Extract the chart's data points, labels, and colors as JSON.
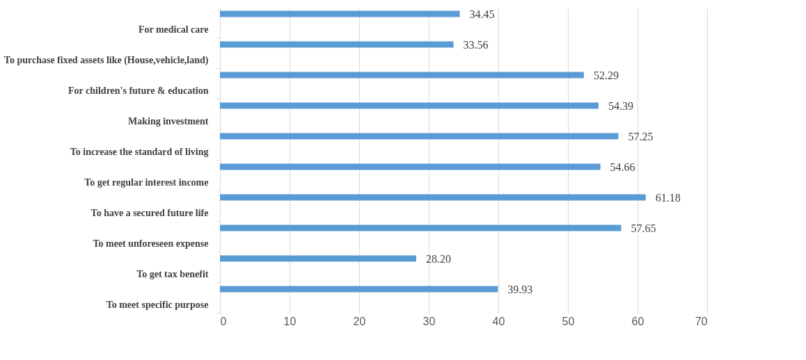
{
  "chart_data": {
    "type": "bar",
    "orientation": "horizontal",
    "categories": [
      "For medical care",
      "To purchase fixed assets like (House,vehicle,land)",
      "For children's future & education",
      "Making investment",
      "To increase the standard of living",
      "To get regular interest income",
      "To have a secured future life",
      "To meet unforeseen expense",
      "To get tax benefit",
      "To meet specific purpose"
    ],
    "values": [
      34.45,
      33.56,
      52.29,
      54.39,
      57.25,
      54.66,
      61.18,
      57.65,
      28.2,
      39.93
    ],
    "value_labels": [
      "34.45",
      "33.56",
      "52.29",
      "54.39",
      "57.25",
      "54.66",
      "61.18",
      "57.65",
      "28.20",
      "39.93"
    ],
    "color": "#5b9bd5",
    "xlim": [
      0,
      70
    ],
    "xticks": [
      0,
      10,
      20,
      30,
      40,
      50,
      60,
      70
    ],
    "grid": "x"
  }
}
